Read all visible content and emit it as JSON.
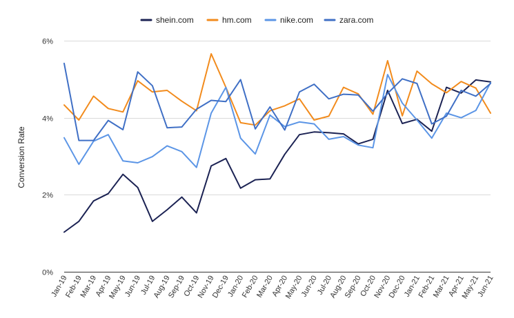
{
  "chart_data": {
    "type": "line",
    "title": "",
    "xlabel": "",
    "ylabel": "Conversion Rate",
    "ylim": [
      0,
      6
    ],
    "yticks": [
      0,
      2,
      4,
      6
    ],
    "ytick_labels": [
      "0%",
      "2%",
      "4%",
      "6%"
    ],
    "grid": true,
    "legend_position": "top",
    "categories": [
      "Jan-19",
      "Feb-19",
      "Mar-19",
      "Apr-19",
      "May-19",
      "Jun-19",
      "Jul-19",
      "Aug-19",
      "Sep-19",
      "Oct-19",
      "Nov-19",
      "Dec-19",
      "Jan-20",
      "Feb-20",
      "Mar-20",
      "Apr-20",
      "May-20",
      "Jun-20",
      "Jul-20",
      "Aug-20",
      "Sep-20",
      "Oct-20",
      "Nov-20",
      "Dec-20",
      "Jan-21",
      "Feb-21",
      "Mar-21",
      "Apr-21",
      "May-21",
      "Jun-21"
    ],
    "series": [
      {
        "name": "shein.com",
        "color": "#1b2253",
        "values": [
          1.03,
          1.31,
          1.84,
          2.03,
          2.53,
          2.19,
          1.31,
          1.61,
          1.94,
          1.53,
          2.75,
          2.94,
          2.17,
          2.39,
          2.41,
          3.05,
          3.56,
          3.63,
          3.61,
          3.58,
          3.32,
          3.44,
          4.71,
          3.85,
          3.96,
          3.65,
          4.79,
          4.64,
          4.98,
          4.93
        ]
      },
      {
        "name": "hm.com",
        "color": "#f28b1c",
        "values": [
          4.33,
          3.94,
          4.56,
          4.24,
          4.15,
          4.96,
          4.67,
          4.71,
          4.43,
          4.18,
          5.66,
          4.79,
          3.87,
          3.81,
          4.18,
          4.31,
          4.49,
          3.94,
          4.04,
          4.79,
          4.62,
          4.09,
          5.48,
          4.05,
          5.21,
          4.88,
          4.65,
          4.94,
          4.77,
          4.12
        ]
      },
      {
        "name": "nike.com",
        "color": "#5b95e6",
        "values": [
          3.48,
          2.79,
          3.39,
          3.56,
          2.88,
          2.83,
          2.99,
          3.27,
          3.12,
          2.71,
          4.12,
          4.79,
          3.47,
          3.06,
          4.07,
          3.77,
          3.89,
          3.84,
          3.44,
          3.51,
          3.29,
          3.22,
          5.12,
          4.38,
          3.94,
          3.47,
          4.12,
          4.0,
          4.19,
          4.91
        ]
      },
      {
        "name": "zara.com",
        "color": "#3f6fc5",
        "values": [
          5.41,
          3.41,
          3.41,
          3.93,
          3.69,
          5.19,
          4.83,
          3.74,
          3.76,
          4.22,
          4.45,
          4.42,
          4.99,
          3.71,
          4.28,
          3.68,
          4.67,
          4.87,
          4.49,
          4.61,
          4.59,
          4.17,
          4.63,
          5.01,
          4.89,
          3.84,
          4.04,
          4.71,
          4.56,
          4.89
        ]
      }
    ]
  }
}
